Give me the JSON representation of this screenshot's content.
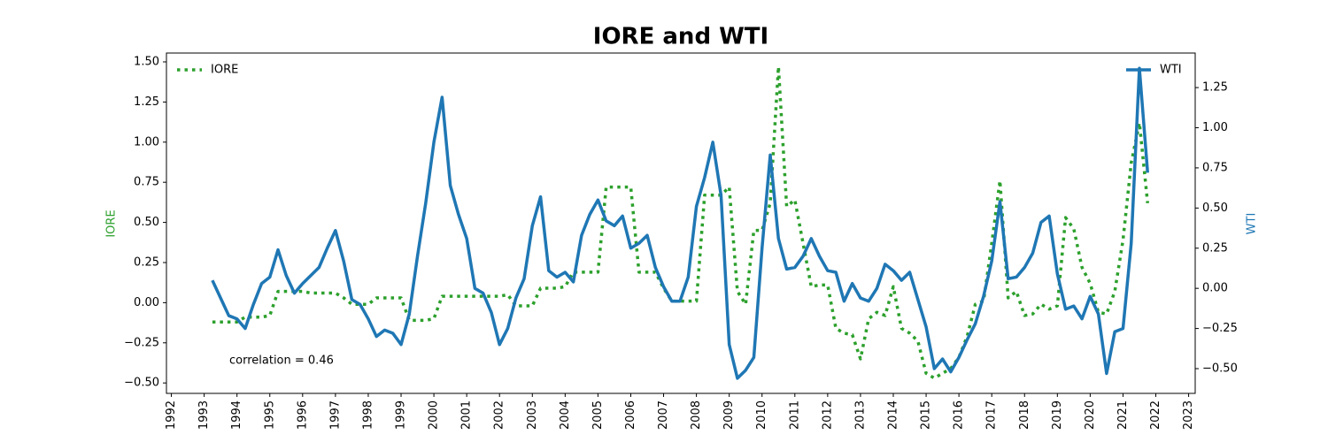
{
  "chart_data": {
    "type": "line",
    "title": "IORE and WTI",
    "ylabel": "IORE",
    "y2label": "WTI",
    "annotation": "correlation = 0.46",
    "xlim": [
      1991.85,
      2023.2
    ],
    "xticks": [
      1992,
      1993,
      1994,
      1995,
      1996,
      1997,
      1998,
      1999,
      2000,
      2001,
      2002,
      2003,
      2004,
      2005,
      2006,
      2007,
      2008,
      2009,
      2010,
      2011,
      2012,
      2013,
      2014,
      2015,
      2016,
      2017,
      2018,
      2019,
      2020,
      2021,
      2022,
      2023
    ],
    "ylim": [
      -0.565,
      1.555
    ],
    "yticks": [
      {
        "value": -0.5,
        "label": "−0.50"
      },
      {
        "value": -0.25,
        "label": "−0.25"
      },
      {
        "value": 0,
        "label": "0.00"
      },
      {
        "value": 0.25,
        "label": "0.25"
      },
      {
        "value": 0.5,
        "label": "0.50"
      },
      {
        "value": 0.75,
        "label": "0.75"
      },
      {
        "value": 1,
        "label": "1.00"
      },
      {
        "value": 1.25,
        "label": "1.25"
      },
      {
        "value": 1.5,
        "label": "1.50"
      }
    ],
    "y2lim": [
      -0.654,
      1.465
    ],
    "y2ticks": [
      {
        "value": -0.5,
        "label": "−0.50"
      },
      {
        "value": -0.25,
        "label": "−0.25"
      },
      {
        "value": 0,
        "label": "0.00"
      },
      {
        "value": 0.25,
        "label": "0.25"
      },
      {
        "value": 0.5,
        "label": "0.50"
      },
      {
        "value": 0.75,
        "label": "0.75"
      },
      {
        "value": 1,
        "label": "1.00"
      },
      {
        "value": 1.25,
        "label": "1.25"
      }
    ],
    "x": [
      1993.25,
      1993.5,
      1993.75,
      1994,
      1994.25,
      1994.5,
      1994.75,
      1995,
      1995.25,
      1995.5,
      1995.75,
      1996,
      1996.25,
      1996.5,
      1996.75,
      1997,
      1997.25,
      1997.5,
      1997.75,
      1998,
      1998.25,
      1998.5,
      1998.75,
      1999,
      1999.25,
      1999.5,
      1999.75,
      2000,
      2000.25,
      2000.5,
      2000.75,
      2001,
      2001.25,
      2001.5,
      2001.75,
      2002,
      2002.25,
      2002.5,
      2002.75,
      2003,
      2003.25,
      2003.5,
      2003.75,
      2004,
      2004.25,
      2004.5,
      2004.75,
      2005,
      2005.25,
      2005.5,
      2005.75,
      2006,
      2006.25,
      2006.5,
      2006.75,
      2007,
      2007.25,
      2007.5,
      2007.75,
      2008,
      2008.25,
      2008.5,
      2008.75,
      2009,
      2009.25,
      2009.5,
      2009.75,
      2010,
      2010.25,
      2010.5,
      2010.75,
      2011,
      2011.25,
      2011.5,
      2011.75,
      2012,
      2012.25,
      2012.5,
      2012.75,
      2013,
      2013.25,
      2013.5,
      2013.75,
      2014,
      2014.25,
      2014.5,
      2014.75,
      2015,
      2015.25,
      2015.5,
      2015.75,
      2016,
      2016.25,
      2016.5,
      2016.75,
      2017,
      2017.25,
      2017.5,
      2017.75,
      2018,
      2018.25,
      2018.5,
      2018.75,
      2019,
      2019.25,
      2019.5,
      2019.75,
      2020,
      2020.25,
      2020.5,
      2020.75,
      2021,
      2021.25,
      2021.5,
      2021.75
    ],
    "series": [
      {
        "name": "IORE",
        "color": "#2ca02c",
        "style": "dotted",
        "axis": "y",
        "legend_loc": "upper left",
        "values": [
          -0.12,
          -0.12,
          -0.12,
          -0.12,
          -0.09,
          -0.09,
          -0.09,
          -0.08,
          0.07,
          0.07,
          0.07,
          0.07,
          0.06,
          0.06,
          0.06,
          0.06,
          0.03,
          -0.01,
          -0.01,
          -0.01,
          0.03,
          0.03,
          0.03,
          0.03,
          -0.11,
          -0.11,
          -0.11,
          -0.1,
          0.04,
          0.04,
          0.04,
          0.04,
          0.04,
          0.04,
          0.04,
          0.04,
          0.05,
          -0.02,
          -0.02,
          -0.02,
          0.09,
          0.09,
          0.09,
          0.1,
          0.19,
          0.19,
          0.19,
          0.19,
          0.72,
          0.72,
          0.72,
          0.72,
          0.19,
          0.19,
          0.19,
          0.09,
          0.01,
          0.01,
          0.01,
          0.01,
          0.67,
          0.67,
          0.67,
          0.72,
          0.07,
          -0.01,
          0.45,
          0.45,
          0.62,
          1.47,
          0.6,
          0.64,
          0.37,
          0.1,
          0.11,
          0.11,
          -0.16,
          -0.19,
          -0.2,
          -0.35,
          -0.1,
          -0.06,
          -0.08,
          0.1,
          -0.16,
          -0.19,
          -0.24,
          -0.44,
          -0.47,
          -0.44,
          -0.41,
          -0.34,
          -0.21,
          -0.01,
          0.01,
          0.37,
          0.76,
          0.03,
          0.07,
          -0.08,
          -0.07,
          -0.01,
          -0.04,
          -0.02,
          0.53,
          0.46,
          0.22,
          0.12,
          -0.06,
          -0.07,
          0.07,
          0.39,
          0.87,
          1.12,
          0.62
        ]
      },
      {
        "name": "WTI",
        "color": "#1f77b4",
        "style": "solid",
        "axis": "y2",
        "legend_loc": "upper right",
        "values": [
          0.05,
          -0.06,
          -0.17,
          -0.19,
          -0.25,
          -0.1,
          0.03,
          0.07,
          0.24,
          0.08,
          -0.03,
          0.03,
          0.08,
          0.13,
          0.25,
          0.36,
          0.17,
          -0.07,
          -0.1,
          -0.19,
          -0.3,
          -0.26,
          -0.28,
          -0.35,
          -0.16,
          0.2,
          0.53,
          0.91,
          1.19,
          0.64,
          0.46,
          0.31,
          0.0,
          -0.03,
          -0.15,
          -0.35,
          -0.25,
          -0.06,
          0.06,
          0.39,
          0.57,
          0.11,
          0.07,
          0.1,
          0.04,
          0.33,
          0.46,
          0.55,
          0.42,
          0.39,
          0.45,
          0.25,
          0.28,
          0.33,
          0.13,
          0.01,
          -0.08,
          -0.08,
          0.07,
          0.51,
          0.69,
          0.91,
          0.58,
          -0.35,
          -0.56,
          -0.51,
          -0.43,
          0.25,
          0.83,
          0.31,
          0.12,
          0.13,
          0.2,
          0.31,
          0.2,
          0.11,
          0.1,
          -0.08,
          0.03,
          -0.06,
          -0.08,
          0.0,
          0.15,
          0.11,
          0.05,
          0.1,
          -0.07,
          -0.24,
          -0.5,
          -0.44,
          -0.52,
          -0.43,
          -0.32,
          -0.22,
          -0.05,
          0.17,
          0.54,
          0.06,
          0.07,
          0.13,
          0.22,
          0.41,
          0.45,
          0.09,
          -0.13,
          -0.11,
          -0.19,
          -0.05,
          -0.16,
          -0.53,
          -0.27,
          -0.25,
          0.28,
          1.37,
          0.72
        ]
      }
    ]
  }
}
